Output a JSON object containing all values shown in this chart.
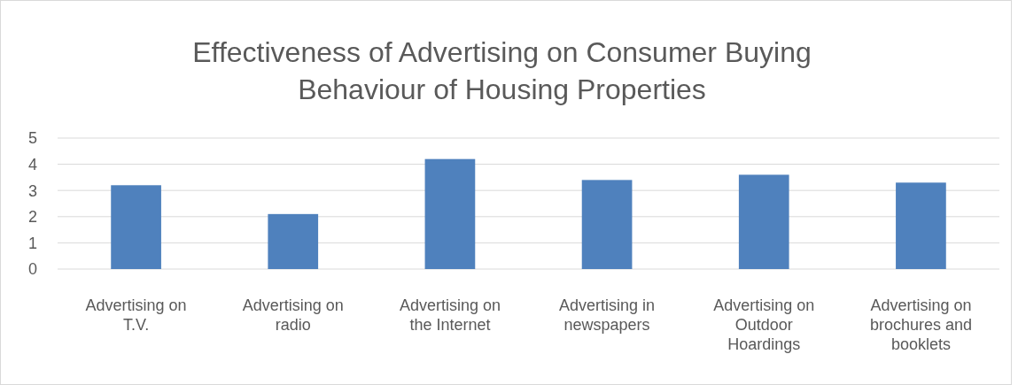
{
  "chart_data": {
    "type": "bar",
    "title": "Effectiveness of Advertising on Consumer Buying Behaviour of Housing Properties",
    "categories": [
      "Advertising on T.V.",
      "Advertising on radio",
      "Advertising on the Internet",
      "Advertising in newspapers",
      "Advertising on Outdoor Hoardings",
      "Advertising on brochures and booklets"
    ],
    "values": [
      3.2,
      2.1,
      4.2,
      3.4,
      3.6,
      3.3
    ],
    "color": "#4f81bd",
    "ylim": [
      0,
      5
    ],
    "yticks": [
      0,
      1,
      2,
      3,
      4,
      5
    ],
    "grid": "y"
  }
}
